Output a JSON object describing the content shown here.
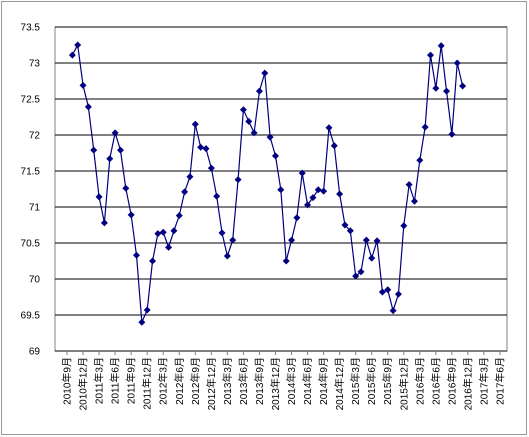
{
  "chart_data": {
    "type": "line",
    "categories": [
      "2010年9月",
      null,
      null,
      "2010年12月",
      null,
      null,
      "2011年3月",
      null,
      null,
      "2011年6月",
      null,
      null,
      "2011年9月",
      null,
      null,
      "2011年12月",
      null,
      null,
      "2012年3月",
      null,
      null,
      "2012年6月",
      null,
      null,
      "2012年9月",
      null,
      null,
      "2012年12月",
      null,
      null,
      "2013年3月",
      null,
      null,
      "2013年6月",
      null,
      null,
      "2013年9月",
      null,
      null,
      "2013年12月",
      null,
      null,
      "2014年3月",
      null,
      null,
      "2014年6月",
      null,
      null,
      "2014年9月",
      null,
      null,
      "2014年12月",
      null,
      null,
      "2015年3月",
      null,
      null,
      "2015年6月",
      null,
      null,
      "2015年9月",
      null,
      null,
      "2015年12月",
      null,
      null,
      "2016年3月",
      null,
      null,
      "2016年6月",
      null,
      null,
      "2016年9月",
      null,
      null,
      "2016年12月",
      null,
      null,
      "2017年3月",
      null,
      null,
      "2017年6月"
    ],
    "series": [
      {
        "color": "#000080",
        "values": [
          null,
          73.11,
          73.25,
          72.69,
          72.39,
          71.79,
          71.14,
          70.78,
          71.67,
          72.03,
          71.79,
          71.26,
          70.89,
          70.33,
          69.4,
          69.57,
          70.25,
          70.63,
          70.65,
          70.44,
          70.67,
          70.88,
          71.21,
          71.42,
          72.15,
          71.83,
          71.81,
          71.54,
          71.15,
          70.64,
          70.32,
          70.54,
          71.38,
          72.35,
          72.19,
          72.03,
          72.61,
          72.86,
          71.97,
          71.71,
          71.24,
          70.25,
          70.54,
          70.85,
          71.47,
          71.03,
          71.13,
          71.24,
          71.22,
          72.1,
          71.85,
          71.18,
          70.75,
          70.67,
          70.04,
          70.1,
          70.54,
          70.29,
          70.53,
          69.82,
          69.85,
          69.56,
          69.79,
          70.74,
          71.31,
          71.08,
          71.65,
          72.11,
          73.11,
          72.65,
          73.24,
          72.61,
          72.01,
          73.0,
          72.68,
          null,
          null,
          null,
          null,
          null,
          null,
          null
        ]
      }
    ],
    "ylim": [
      69,
      73.5
    ],
    "yticks": [
      69,
      69.5,
      70,
      70.5,
      71,
      71.5,
      72,
      72.5,
      73,
      73.5
    ],
    "grid": true
  }
}
